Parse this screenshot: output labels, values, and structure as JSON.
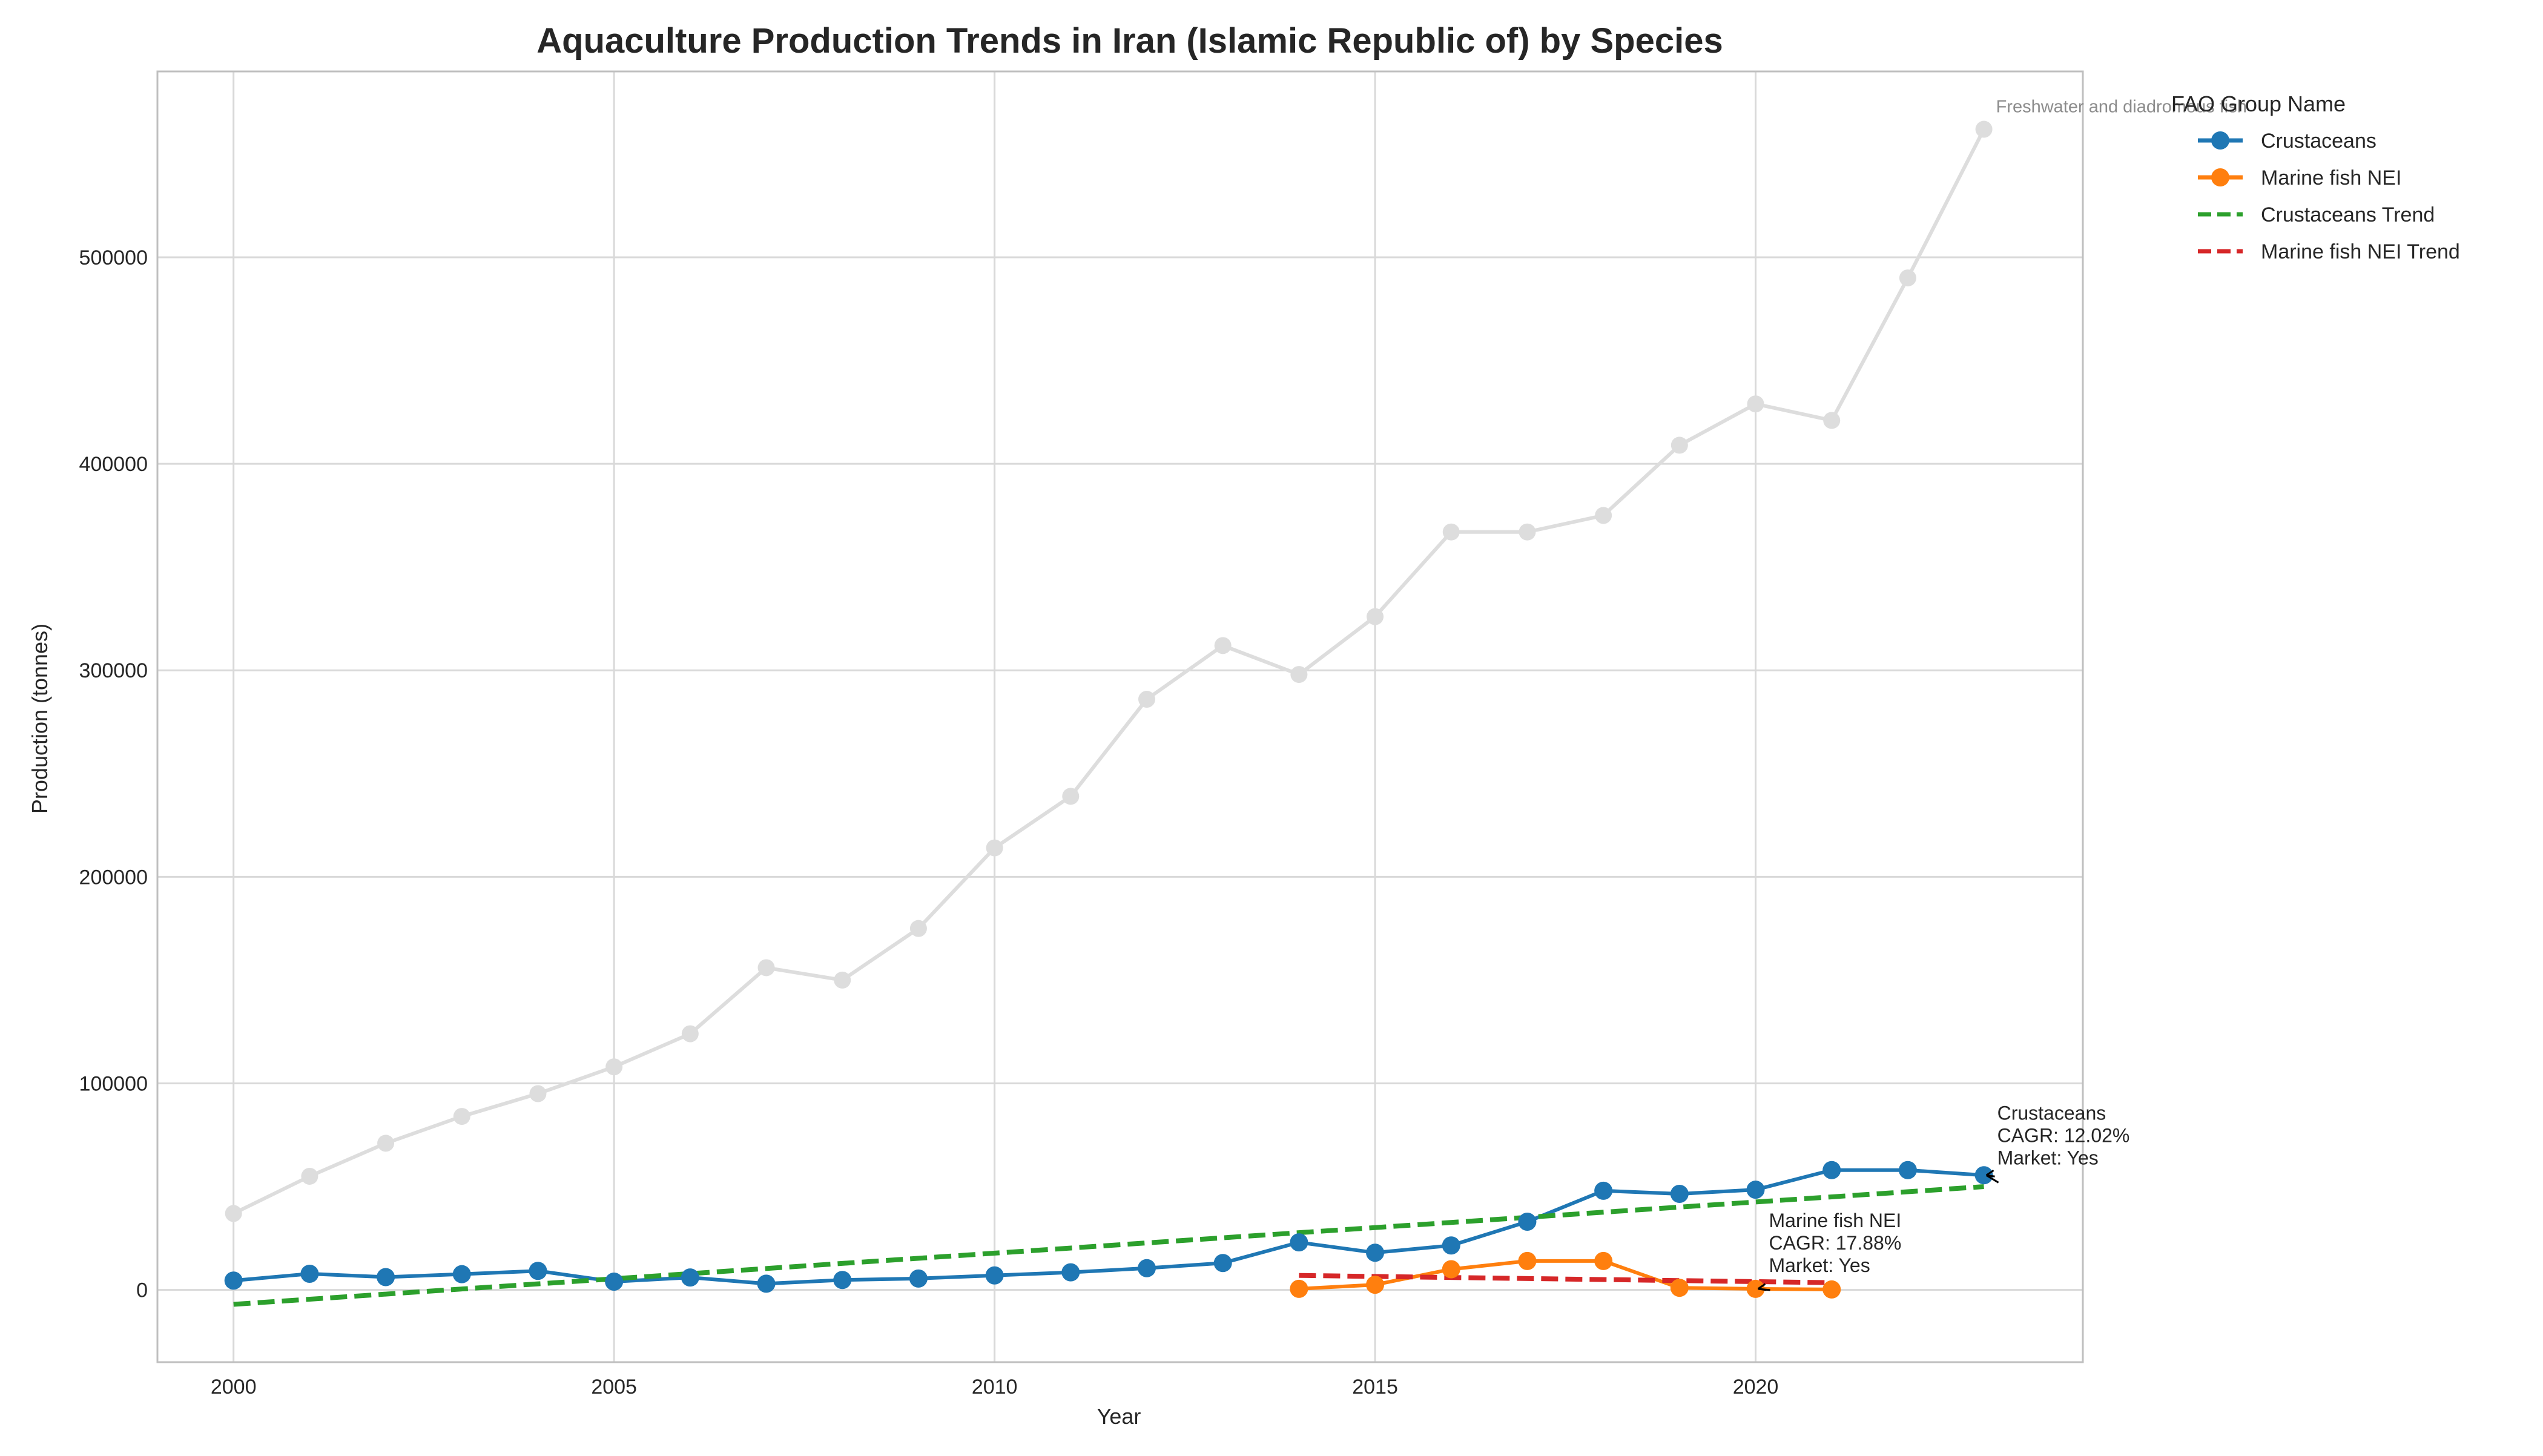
{
  "chart_data": {
    "type": "line",
    "title": "Aquaculture Production Trends in Iran (Islamic Republic of) by Species",
    "xlabel": "Year",
    "ylabel": "Production (tonnes)",
    "xlim": [
      1999,
      2024.3
    ],
    "ylim": [
      -35000,
      590000
    ],
    "xticks": [
      2000,
      2005,
      2010,
      2015,
      2020
    ],
    "yticks": [
      0,
      100000,
      200000,
      300000,
      400000,
      500000
    ],
    "grid": true,
    "legend": {
      "title": "FAO Group Name",
      "position": "outside-top-right",
      "entries": [
        "Crustaceans",
        "Marine fish NEI",
        "Crustaceans Trend",
        "Marine fish NEI Trend"
      ]
    },
    "colors": {
      "crustaceans": "#1f77b4",
      "marine": "#ff7f0e",
      "crustaceans_trend": "#2ca02c",
      "marine_trend": "#d62728",
      "background_series": "#dddddd",
      "grid": "#d9d9d9",
      "axis": "#bfbfbf"
    },
    "background_series": {
      "name": "Freshwater and diadromous fish",
      "x": [
        2000,
        2001,
        2002,
        2003,
        2004,
        2005,
        2006,
        2007,
        2008,
        2009,
        2010,
        2011,
        2012,
        2013,
        2014,
        2015,
        2016,
        2017,
        2018,
        2019,
        2020,
        2021,
        2022,
        2023
      ],
      "y": [
        37000,
        55000,
        71000,
        84000,
        95000,
        108000,
        124000,
        156000,
        150000,
        175000,
        214000,
        239000,
        286000,
        312000,
        298000,
        326000,
        367000,
        367000,
        375000,
        409000,
        429000,
        421000,
        490000,
        562000
      ]
    },
    "series": [
      {
        "name": "Crustaceans",
        "x": [
          2000,
          2001,
          2002,
          2003,
          2004,
          2005,
          2006,
          2007,
          2008,
          2009,
          2010,
          2011,
          2012,
          2013,
          2014,
          2015,
          2016,
          2017,
          2018,
          2019,
          2020,
          2021,
          2022,
          2023
        ],
        "y": [
          4500,
          7800,
          6200,
          7600,
          9200,
          4000,
          6000,
          3000,
          4800,
          5500,
          7000,
          8500,
          10500,
          13000,
          23000,
          18000,
          21500,
          33000,
          48000,
          46500,
          48500,
          58000,
          58000,
          55500
        ]
      },
      {
        "name": "Marine fish NEI",
        "x": [
          2014,
          2015,
          2016,
          2017,
          2018,
          2019,
          2020,
          2021
        ],
        "y": [
          500,
          2500,
          10000,
          14000,
          14000,
          1000,
          500,
          200
        ]
      }
    ],
    "trends": [
      {
        "name": "Crustaceans Trend",
        "x": [
          2000,
          2023
        ],
        "y": [
          -7000,
          50000
        ]
      },
      {
        "name": "Marine fish NEI Trend",
        "x": [
          2014,
          2021
        ],
        "y": [
          7000,
          3500
        ]
      }
    ],
    "annotations": [
      {
        "lines": [
          "Crustaceans",
          "CAGR: 12.02%",
          "Market: Yes"
        ],
        "anchor_x": 2023,
        "anchor_y": 55500
      },
      {
        "lines": [
          "Marine fish NEI",
          "CAGR: 17.88%",
          "Market: Yes"
        ],
        "anchor_x": 2020,
        "anchor_y": 500
      }
    ]
  }
}
